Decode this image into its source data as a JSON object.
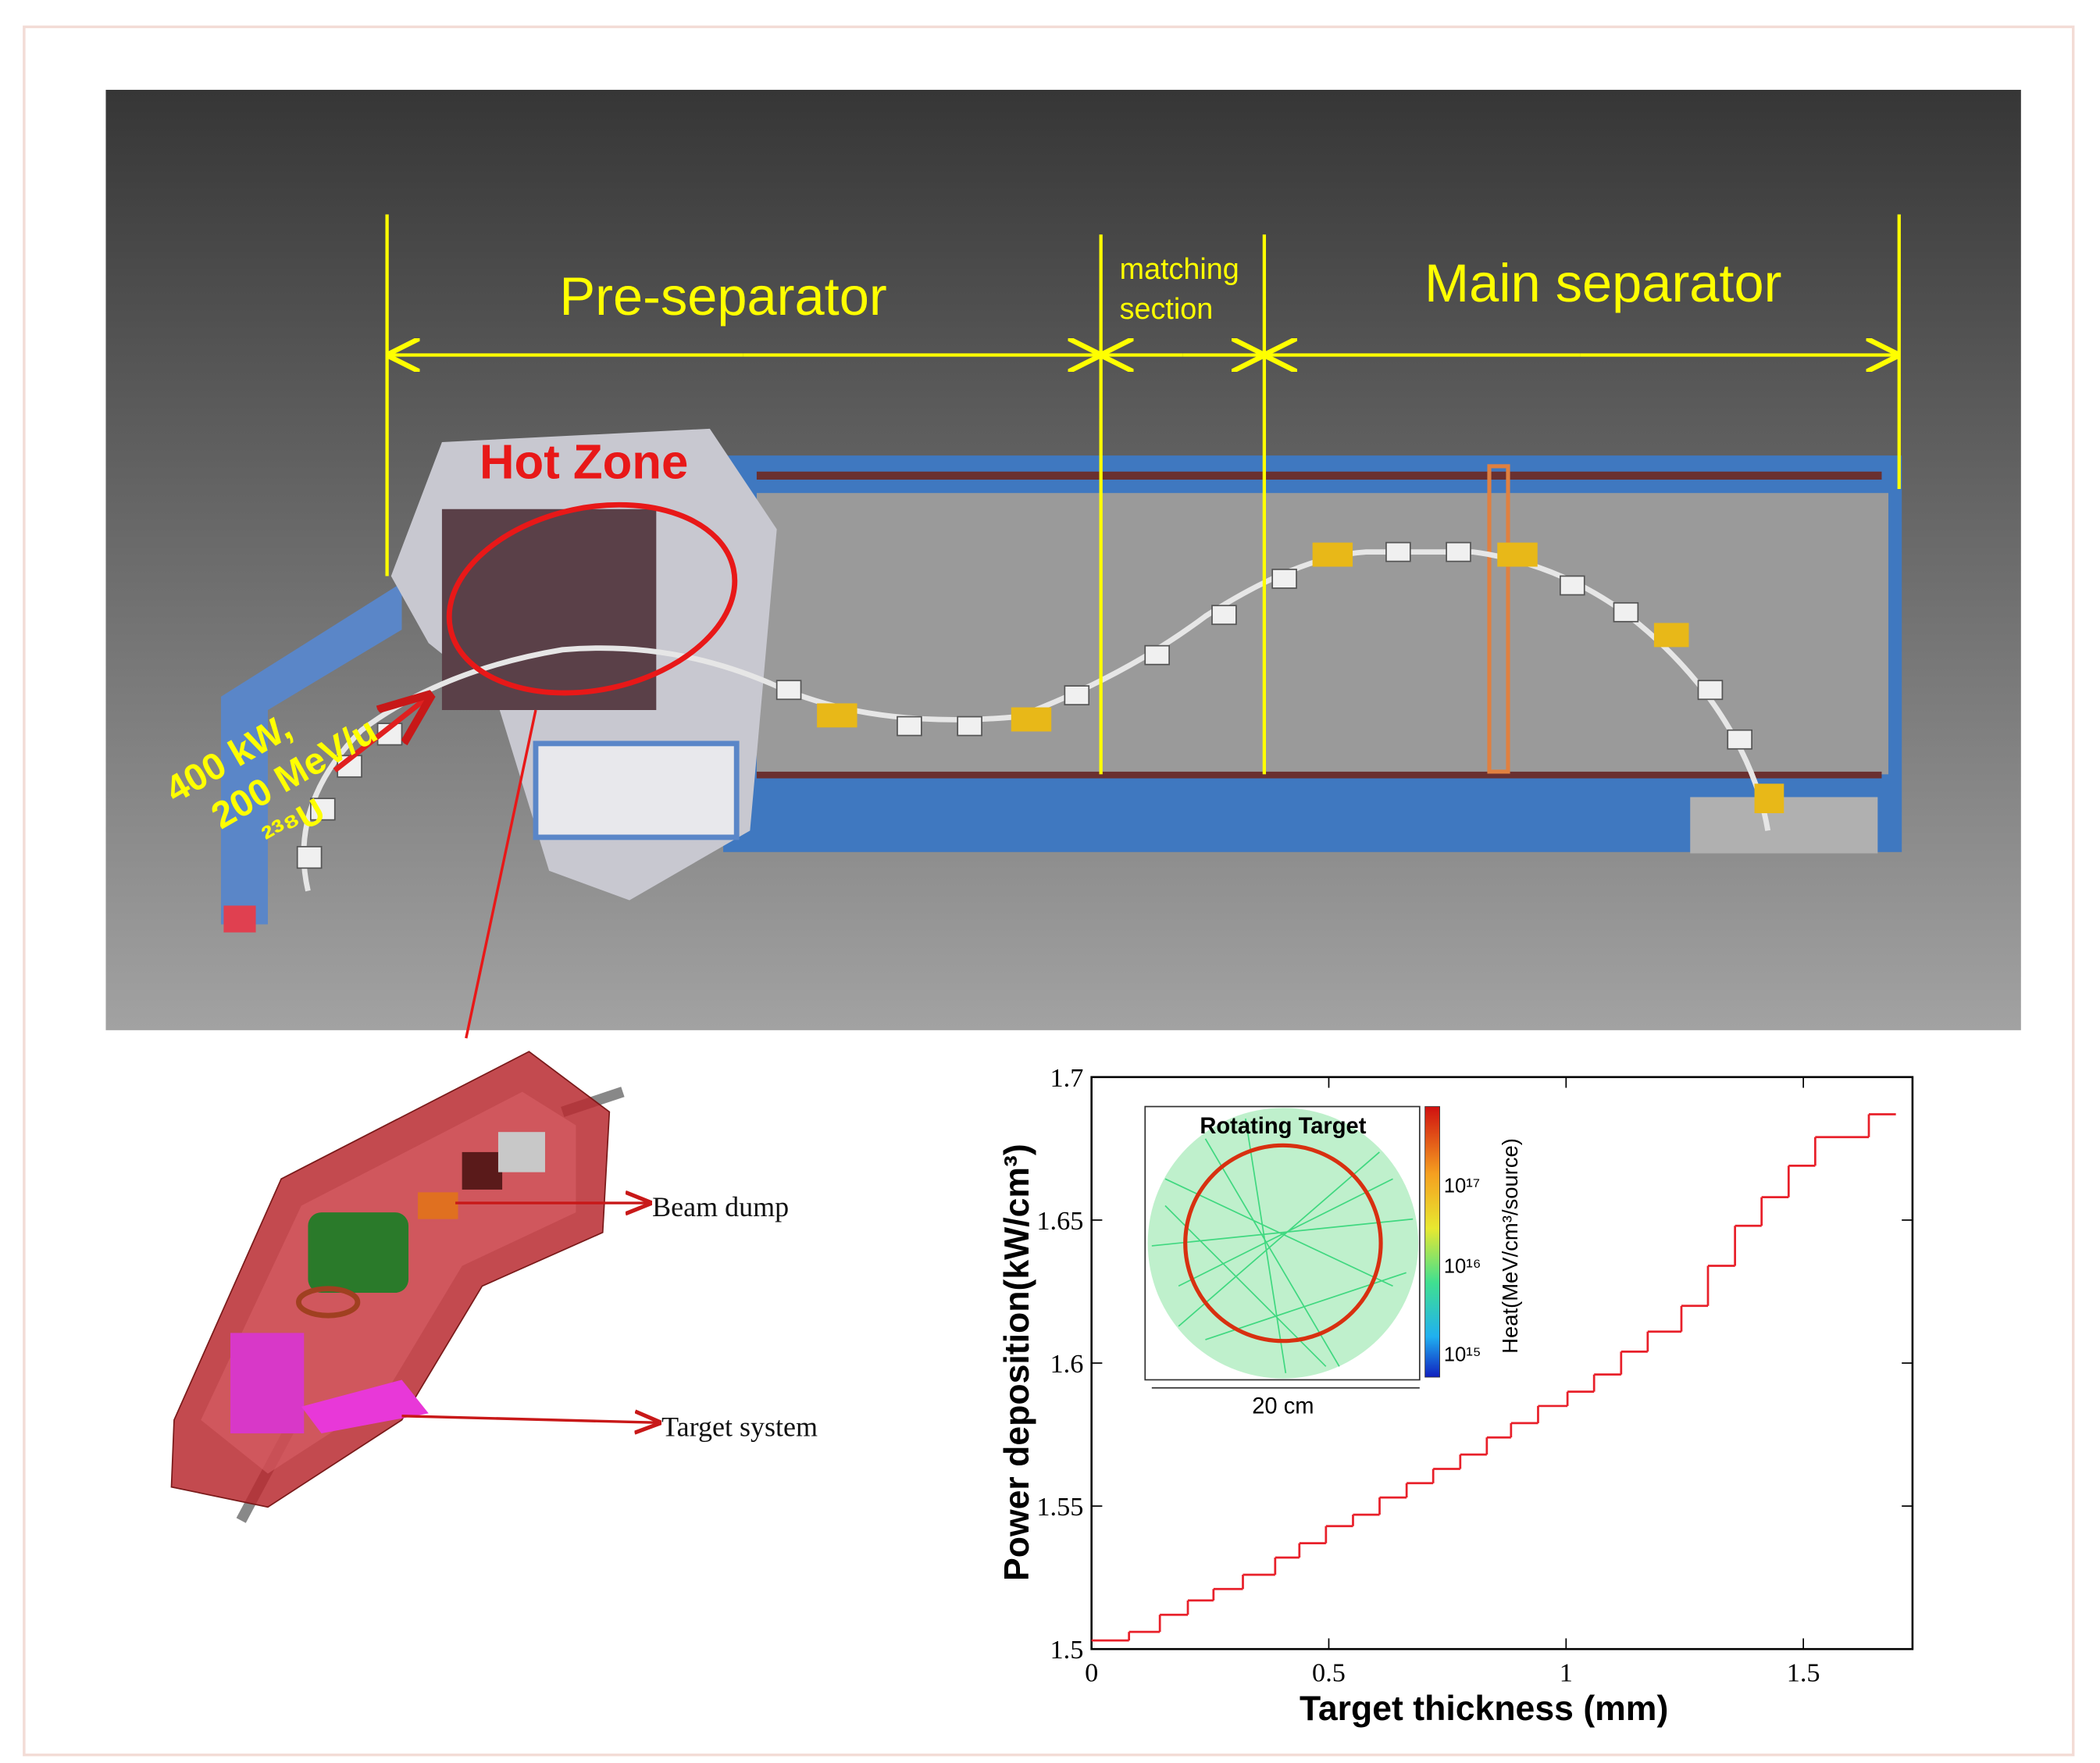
{
  "figure": {
    "pre_separator": "Pre-separator",
    "matching_line1": "matching",
    "matching_line2": "section",
    "main_separator": "Main separator",
    "hot_zone": "Hot Zone",
    "beam_line1": "400 kW,",
    "beam_line2": "200 MeV/u",
    "beam_line3": "²³⁸U",
    "beam_dump": "Beam dump",
    "target_system": "Target system",
    "inset_title": "Rotating Target",
    "inset_scale": "20 cm",
    "colorbar_label": "Heat(MeV/cm³/source)",
    "colorbar_ticks": [
      "10¹⁷",
      "10¹⁶",
      "10¹⁵"
    ]
  },
  "chart_data": {
    "type": "line",
    "step": "post",
    "x_label": "Target thickness (mm)",
    "y_label": "Power deposition(kW/cm³)",
    "color": "#e8202a",
    "x": [
      0,
      0.079,
      0.144,
      0.203,
      0.257,
      0.319,
      0.387,
      0.438,
      0.494,
      0.551,
      0.607,
      0.664,
      0.72,
      0.777,
      0.833,
      0.884,
      0.941,
      1.003,
      1.059,
      1.116,
      1.172,
      1.243,
      1.299,
      1.356,
      1.412,
      1.469,
      1.525,
      1.638,
      1.695
    ],
    "values": [
      1.503,
      1.506,
      1.512,
      1.517,
      1.521,
      1.526,
      1.532,
      1.537,
      1.543,
      1.547,
      1.553,
      1.558,
      1.563,
      1.568,
      1.574,
      1.579,
      1.585,
      1.59,
      1.596,
      1.604,
      1.611,
      1.62,
      1.634,
      1.648,
      1.658,
      1.669,
      1.679,
      1.687,
      1.687
    ],
    "xlim": [
      0,
      1.73
    ],
    "ylim": [
      1.5,
      1.7
    ],
    "xticks": [
      0,
      0.5,
      1,
      1.5
    ],
    "yticks": [
      1.5,
      1.55,
      1.6,
      1.65,
      1.7
    ],
    "grid": false
  }
}
